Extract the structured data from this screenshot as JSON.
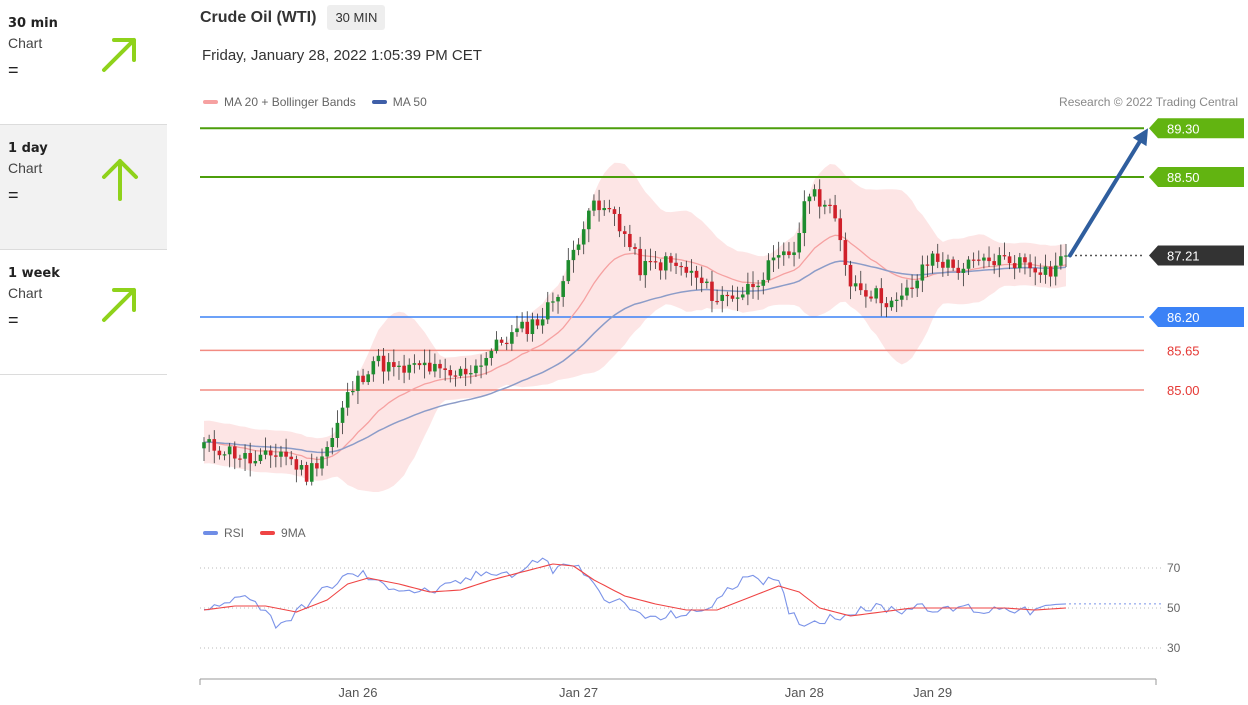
{
  "sidebar": [
    {
      "timeframe": "30 min",
      "label": "Chart",
      "status": "=",
      "direction": "up-right"
    },
    {
      "timeframe": "1 day",
      "label": "Chart",
      "status": "=",
      "direction": "up"
    },
    {
      "timeframe": "1 week",
      "label": "Chart",
      "status": "=",
      "direction": "up-right"
    }
  ],
  "header": {
    "title": "Crude Oil (WTI)",
    "period": "30 MIN",
    "timestamp": "Friday, January 28, 2022 1:05:39 PM CET"
  },
  "legend": {
    "ma20": "MA 20 + Bollinger Bands",
    "ma50": "MA 50"
  },
  "rsi_legend": {
    "rsi": "RSI",
    "ma9": "9MA"
  },
  "credit": "Research © 2022 Trading Central",
  "colors": {
    "accent_green": "#62b411",
    "sidebar_arrow": "#8fd21b",
    "resistance": "#4c9e0b",
    "support": "#3b82f6",
    "support_light": "#f28b82",
    "current_price": "#333333",
    "candle_up": "#1e8c2e",
    "candle_down": "#d0202a",
    "bollinger_fill": "#fde0e0",
    "ma20": "#f6a1a1",
    "ma50": "#8c9cc8",
    "forecast_arrow": "#2f5e9e",
    "rsi": "#7b93e8",
    "rsi_ma": "#ef4444"
  },
  "chart_data": [
    {
      "type": "candlestick",
      "title": "Crude Oil (WTI)",
      "period": "30 MIN",
      "ylim": [
        82.7,
        89.6
      ],
      "x_labels": [
        "Jan 26",
        "Jan 27",
        "Jan 28",
        "Jan 29"
      ],
      "levels": [
        {
          "value": 89.3,
          "label": "89.30",
          "role": "resistance target"
        },
        {
          "value": 88.5,
          "label": "88.50",
          "role": "resistance"
        },
        {
          "value": 87.21,
          "label": "87.21",
          "role": "current price"
        },
        {
          "value": 86.2,
          "label": "86.20",
          "role": "pivot"
        },
        {
          "value": 85.65,
          "label": "85.65",
          "role": "support"
        },
        {
          "value": 85.0,
          "label": "85.00",
          "role": "support"
        }
      ],
      "forecast": {
        "from": 87.21,
        "to": 89.3,
        "direction": "up"
      },
      "close_points": [
        [
          0,
          84.1
        ],
        [
          5,
          84.0
        ],
        [
          10,
          83.8
        ],
        [
          15,
          84.0
        ],
        [
          20,
          83.6
        ],
        [
          25,
          84.2
        ],
        [
          28,
          84.9
        ],
        [
          33,
          85.5
        ],
        [
          38,
          85.3
        ],
        [
          43,
          85.4
        ],
        [
          48,
          85.2
        ],
        [
          53,
          85.4
        ],
        [
          58,
          85.8
        ],
        [
          62,
          86.0
        ],
        [
          66,
          86.2
        ],
        [
          70,
          86.8
        ],
        [
          75,
          88.0
        ],
        [
          80,
          87.9
        ],
        [
          85,
          87.0
        ],
        [
          90,
          87.1
        ],
        [
          95,
          86.9
        ],
        [
          100,
          86.5
        ],
        [
          105,
          86.6
        ],
        [
          110,
          87.0
        ],
        [
          115,
          87.3
        ],
        [
          118,
          88.3
        ],
        [
          122,
          88.0
        ],
        [
          126,
          86.8
        ],
        [
          130,
          86.6
        ],
        [
          135,
          86.4
        ],
        [
          138,
          86.7
        ],
        [
          142,
          87.2
        ],
        [
          146,
          87.0
        ],
        [
          150,
          87.05
        ],
        [
          155,
          87.15
        ],
        [
          160,
          87.1
        ],
        [
          165,
          86.95
        ],
        [
          168,
          87.21
        ]
      ],
      "total_bars": 169,
      "x_label_bars": [
        30,
        73,
        117,
        142
      ]
    },
    {
      "type": "line",
      "title": "RSI",
      "series": [
        {
          "name": "RSI"
        },
        {
          "name": "9MA"
        }
      ],
      "ylim": [
        20,
        80
      ],
      "y_ticks": [
        70,
        50,
        30
      ],
      "rsi_points": [
        [
          0,
          49
        ],
        [
          4,
          51
        ],
        [
          8,
          58
        ],
        [
          12,
          48
        ],
        [
          14,
          42
        ],
        [
          17,
          45
        ],
        [
          20,
          52
        ],
        [
          24,
          60
        ],
        [
          28,
          66
        ],
        [
          31,
          67
        ],
        [
          34,
          62
        ],
        [
          38,
          60
        ],
        [
          42,
          58
        ],
        [
          46,
          59
        ],
        [
          50,
          63
        ],
        [
          54,
          67
        ],
        [
          58,
          69
        ],
        [
          60,
          66
        ],
        [
          63,
          70
        ],
        [
          66,
          76
        ],
        [
          68,
          68
        ],
        [
          71,
          73
        ],
        [
          74,
          68
        ],
        [
          77,
          57
        ],
        [
          80,
          54
        ],
        [
          84,
          48
        ],
        [
          88,
          44
        ],
        [
          92,
          47
        ],
        [
          96,
          47
        ],
        [
          100,
          54
        ],
        [
          103,
          60
        ],
        [
          106,
          68
        ],
        [
          109,
          64
        ],
        [
          112,
          62
        ],
        [
          114,
          48
        ],
        [
          117,
          42
        ],
        [
          120,
          44
        ],
        [
          124,
          46
        ],
        [
          128,
          50
        ],
        [
          132,
          50
        ],
        [
          136,
          49
        ],
        [
          140,
          52
        ],
        [
          144,
          48
        ],
        [
          148,
          51
        ],
        [
          152,
          48
        ],
        [
          156,
          51
        ],
        [
          160,
          48
        ],
        [
          165,
          50
        ],
        [
          168,
          52
        ]
      ],
      "ma_points": [
        [
          0,
          49
        ],
        [
          6,
          51
        ],
        [
          12,
          51
        ],
        [
          18,
          48
        ],
        [
          24,
          54
        ],
        [
          28,
          62
        ],
        [
          32,
          65
        ],
        [
          38,
          62
        ],
        [
          44,
          58
        ],
        [
          50,
          59
        ],
        [
          56,
          64
        ],
        [
          62,
          68
        ],
        [
          68,
          72
        ],
        [
          72,
          71
        ],
        [
          76,
          64
        ],
        [
          82,
          56
        ],
        [
          88,
          52
        ],
        [
          94,
          49
        ],
        [
          100,
          49
        ],
        [
          106,
          55
        ],
        [
          112,
          61
        ],
        [
          116,
          58
        ],
        [
          120,
          50
        ],
        [
          126,
          46
        ],
        [
          132,
          48
        ],
        [
          138,
          50
        ],
        [
          144,
          50
        ],
        [
          150,
          50
        ],
        [
          156,
          50
        ],
        [
          162,
          49
        ],
        [
          168,
          50
        ]
      ]
    }
  ]
}
